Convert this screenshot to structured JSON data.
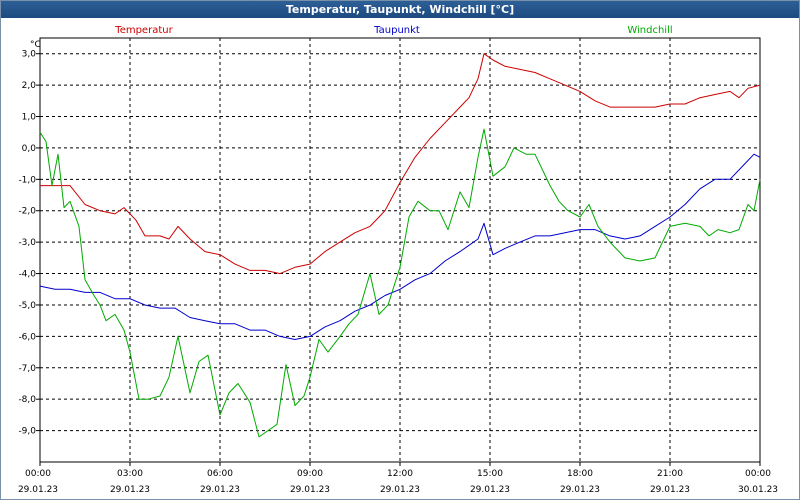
{
  "window": {
    "title": "Temperatur, Taupunkt, Windchill [°C]"
  },
  "chart_data": {
    "type": "line",
    "title": "Temperatur, Taupunkt, Windchill [°C]",
    "ylabel": "°C",
    "ylim": [
      -10.0,
      3.5
    ],
    "yticks": [
      "3,0",
      "2,0",
      "1,0",
      "0,0",
      "-1,0",
      "-2,0",
      "-3,0",
      "-4,0",
      "-5,0",
      "-6,0",
      "-7,0",
      "-8,0",
      "-9,0"
    ],
    "xlim": [
      0,
      24
    ],
    "xticks": [
      {
        "x": 0,
        "time": "00:00",
        "date": "29.01.23"
      },
      {
        "x": 3,
        "time": "03:00",
        "date": "29.01.23"
      },
      {
        "x": 6,
        "time": "06:00",
        "date": "29.01.23"
      },
      {
        "x": 9,
        "time": "09:00",
        "date": "29.01.23"
      },
      {
        "x": 12,
        "time": "12:00",
        "date": "29.01.23"
      },
      {
        "x": 15,
        "time": "15:00",
        "date": "29.01.23"
      },
      {
        "x": 18,
        "time": "18:00",
        "date": "29.01.23"
      },
      {
        "x": 21,
        "time": "21:00",
        "date": "29.01.23"
      },
      {
        "x": 24,
        "time": "00:00",
        "date": "30.01.23"
      }
    ],
    "grid": true,
    "legend_position": "top",
    "series": [
      {
        "name": "Temperatur",
        "color": "#cc0000",
        "points": [
          [
            0,
            -1.2
          ],
          [
            0.5,
            -1.2
          ],
          [
            1,
            -1.2
          ],
          [
            1.5,
            -1.8
          ],
          [
            2,
            -2.0
          ],
          [
            2.5,
            -2.1
          ],
          [
            2.8,
            -1.9
          ],
          [
            3.2,
            -2.3
          ],
          [
            3.5,
            -2.8
          ],
          [
            4,
            -2.8
          ],
          [
            4.3,
            -2.9
          ],
          [
            4.6,
            -2.5
          ],
          [
            5,
            -2.9
          ],
          [
            5.5,
            -3.3
          ],
          [
            6,
            -3.4
          ],
          [
            6.5,
            -3.7
          ],
          [
            7,
            -3.9
          ],
          [
            7.5,
            -3.9
          ],
          [
            8,
            -4.0
          ],
          [
            8.5,
            -3.8
          ],
          [
            9,
            -3.7
          ],
          [
            9.5,
            -3.3
          ],
          [
            10,
            -3.0
          ],
          [
            10.5,
            -2.7
          ],
          [
            11,
            -2.5
          ],
          [
            11.5,
            -2.0
          ],
          [
            12,
            -1.1
          ],
          [
            12.5,
            -0.3
          ],
          [
            13,
            0.3
          ],
          [
            13.5,
            0.8
          ],
          [
            14,
            1.3
          ],
          [
            14.3,
            1.6
          ],
          [
            14.6,
            2.2
          ],
          [
            14.8,
            3.0
          ],
          [
            15.1,
            2.8
          ],
          [
            15.5,
            2.6
          ],
          [
            16,
            2.5
          ],
          [
            16.5,
            2.4
          ],
          [
            17,
            2.2
          ],
          [
            17.5,
            2.0
          ],
          [
            18,
            1.8
          ],
          [
            18.5,
            1.5
          ],
          [
            19,
            1.3
          ],
          [
            19.5,
            1.3
          ],
          [
            20,
            1.3
          ],
          [
            20.5,
            1.3
          ],
          [
            21,
            1.4
          ],
          [
            21.5,
            1.4
          ],
          [
            22,
            1.6
          ],
          [
            22.5,
            1.7
          ],
          [
            23,
            1.8
          ],
          [
            23.3,
            1.6
          ],
          [
            23.6,
            1.9
          ],
          [
            24,
            2.0
          ]
        ]
      },
      {
        "name": "Taupunkt",
        "color": "#0000cc",
        "points": [
          [
            0,
            -4.4
          ],
          [
            0.5,
            -4.5
          ],
          [
            1,
            -4.5
          ],
          [
            1.5,
            -4.6
          ],
          [
            2,
            -4.6
          ],
          [
            2.5,
            -4.8
          ],
          [
            3,
            -4.8
          ],
          [
            3.5,
            -5.0
          ],
          [
            4,
            -5.1
          ],
          [
            4.5,
            -5.1
          ],
          [
            5,
            -5.4
          ],
          [
            5.5,
            -5.5
          ],
          [
            6,
            -5.6
          ],
          [
            6.5,
            -5.6
          ],
          [
            7,
            -5.8
          ],
          [
            7.5,
            -5.8
          ],
          [
            8,
            -6.0
          ],
          [
            8.5,
            -6.1
          ],
          [
            9,
            -6.0
          ],
          [
            9.5,
            -5.7
          ],
          [
            10,
            -5.5
          ],
          [
            10.5,
            -5.2
          ],
          [
            11,
            -5.0
          ],
          [
            11.5,
            -4.7
          ],
          [
            12,
            -4.5
          ],
          [
            12.5,
            -4.2
          ],
          [
            13,
            -4.0
          ],
          [
            13.5,
            -3.6
          ],
          [
            14,
            -3.3
          ],
          [
            14.3,
            -3.1
          ],
          [
            14.6,
            -2.9
          ],
          [
            14.8,
            -2.4
          ],
          [
            15.1,
            -3.4
          ],
          [
            15.5,
            -3.2
          ],
          [
            16,
            -3.0
          ],
          [
            16.5,
            -2.8
          ],
          [
            17,
            -2.8
          ],
          [
            17.5,
            -2.7
          ],
          [
            18,
            -2.6
          ],
          [
            18.5,
            -2.6
          ],
          [
            19,
            -2.8
          ],
          [
            19.5,
            -2.9
          ],
          [
            20,
            -2.8
          ],
          [
            20.5,
            -2.5
          ],
          [
            21,
            -2.2
          ],
          [
            21.5,
            -1.8
          ],
          [
            22,
            -1.3
          ],
          [
            22.5,
            -1.0
          ],
          [
            23,
            -1.0
          ],
          [
            23.5,
            -0.5
          ],
          [
            23.8,
            -0.2
          ],
          [
            24,
            -0.3
          ]
        ]
      },
      {
        "name": "Windchill",
        "color": "#00aa00",
        "points": [
          [
            0,
            0.5
          ],
          [
            0.2,
            0.2
          ],
          [
            0.4,
            -1.2
          ],
          [
            0.6,
            -0.2
          ],
          [
            0.8,
            -1.9
          ],
          [
            1,
            -1.7
          ],
          [
            1.3,
            -2.5
          ],
          [
            1.5,
            -4.2
          ],
          [
            1.8,
            -4.7
          ],
          [
            2,
            -5.0
          ],
          [
            2.2,
            -5.5
          ],
          [
            2.5,
            -5.3
          ],
          [
            2.8,
            -5.8
          ],
          [
            3,
            -6.5
          ],
          [
            3.3,
            -8.0
          ],
          [
            3.6,
            -8.0
          ],
          [
            4,
            -7.9
          ],
          [
            4.3,
            -7.3
          ],
          [
            4.6,
            -6.0
          ],
          [
            5,
            -7.8
          ],
          [
            5.3,
            -6.8
          ],
          [
            5.6,
            -6.6
          ],
          [
            6,
            -8.5
          ],
          [
            6.3,
            -7.8
          ],
          [
            6.6,
            -7.5
          ],
          [
            7,
            -8.1
          ],
          [
            7.3,
            -9.2
          ],
          [
            7.6,
            -9.0
          ],
          [
            7.9,
            -8.8
          ],
          [
            8.2,
            -6.9
          ],
          [
            8.5,
            -8.2
          ],
          [
            8.8,
            -7.9
          ],
          [
            9,
            -7.3
          ],
          [
            9.3,
            -6.1
          ],
          [
            9.6,
            -6.5
          ],
          [
            10,
            -6.0
          ],
          [
            10.3,
            -5.6
          ],
          [
            10.6,
            -5.3
          ],
          [
            11,
            -4.0
          ],
          [
            11.3,
            -5.3
          ],
          [
            11.6,
            -5.0
          ],
          [
            12,
            -3.8
          ],
          [
            12.3,
            -2.2
          ],
          [
            12.6,
            -1.7
          ],
          [
            13,
            -2.0
          ],
          [
            13.3,
            -2.0
          ],
          [
            13.6,
            -2.6
          ],
          [
            14,
            -1.4
          ],
          [
            14.3,
            -1.9
          ],
          [
            14.6,
            -0.3
          ],
          [
            14.8,
            0.6
          ],
          [
            15.1,
            -0.9
          ],
          [
            15.5,
            -0.6
          ],
          [
            15.8,
            0.0
          ],
          [
            16.2,
            -0.2
          ],
          [
            16.5,
            -0.2
          ],
          [
            17,
            -1.2
          ],
          [
            17.3,
            -1.7
          ],
          [
            17.6,
            -2.0
          ],
          [
            18,
            -2.2
          ],
          [
            18.3,
            -1.8
          ],
          [
            18.6,
            -2.5
          ],
          [
            19,
            -3.0
          ],
          [
            19.5,
            -3.5
          ],
          [
            20,
            -3.6
          ],
          [
            20.5,
            -3.5
          ],
          [
            21,
            -2.5
          ],
          [
            21.5,
            -2.4
          ],
          [
            22,
            -2.5
          ],
          [
            22.3,
            -2.8
          ],
          [
            22.6,
            -2.6
          ],
          [
            23,
            -2.7
          ],
          [
            23.3,
            -2.6
          ],
          [
            23.6,
            -1.8
          ],
          [
            23.8,
            -2.0
          ],
          [
            24,
            -1.0
          ]
        ]
      }
    ]
  }
}
